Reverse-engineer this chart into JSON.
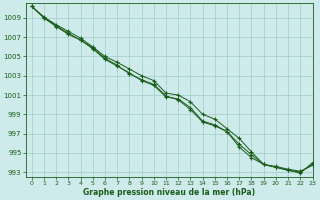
{
  "title": "Graphe pression niveau de la mer (hPa)",
  "background_color": "#ceeaea",
  "grid_color": "#aacfcf",
  "line_color": "#1a5c1a",
  "marker_color": "#1a5c1a",
  "xlim": [
    -0.5,
    23
  ],
  "ylim": [
    992.5,
    1010.5
  ],
  "yticks": [
    993,
    995,
    997,
    999,
    1001,
    1003,
    1005,
    1007,
    1009
  ],
  "xticks": [
    0,
    1,
    2,
    3,
    4,
    5,
    6,
    7,
    8,
    9,
    10,
    11,
    12,
    13,
    14,
    15,
    16,
    17,
    18,
    19,
    20,
    21,
    22,
    23
  ],
  "series": [
    [
      1010.2,
      1009.1,
      1008.3,
      1007.6,
      1006.9,
      1006.0,
      1005.0,
      1004.4,
      1003.7,
      1003.0,
      1002.5,
      1001.2,
      1001.0,
      1000.3,
      999.0,
      998.5,
      997.5,
      996.5,
      995.1,
      993.8,
      993.6,
      993.3,
      993.1,
      993.7
    ],
    [
      1010.2,
      1009.0,
      1008.1,
      1007.3,
      1006.7,
      1005.8,
      1004.7,
      1004.0,
      1003.3,
      1002.5,
      1002.0,
      1000.8,
      1000.6,
      999.7,
      998.3,
      997.9,
      997.2,
      995.6,
      994.5,
      993.8,
      993.5,
      993.2,
      992.9,
      994.0
    ],
    [
      1010.2,
      1009.0,
      1008.2,
      1007.4,
      1006.7,
      1005.9,
      1004.8,
      1004.1,
      1003.2,
      1002.6,
      1002.1,
      1000.9,
      1000.5,
      999.5,
      998.2,
      997.8,
      997.2,
      995.9,
      994.8,
      993.8,
      993.5,
      993.2,
      993.0,
      993.8
    ]
  ]
}
